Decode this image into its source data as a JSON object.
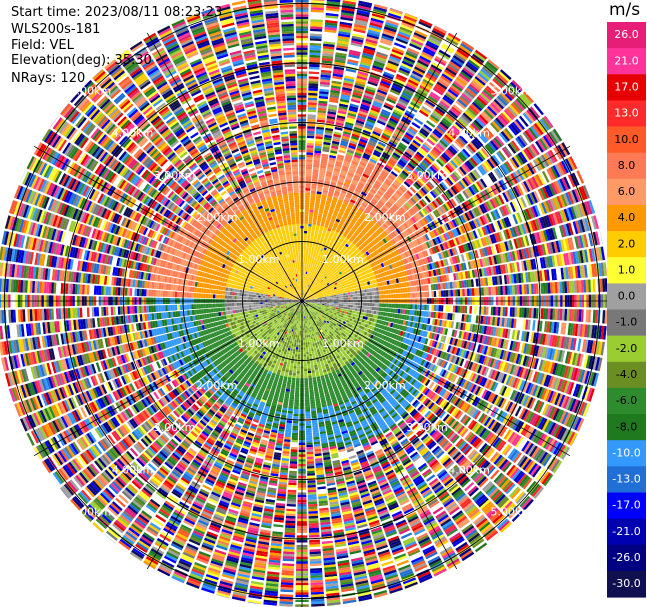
{
  "info": {
    "start_time": "Start time: 2023/08/11 08:23:23",
    "station": "WLS200s-181",
    "field": "Field: VEL",
    "elevation": "Elevation(deg): 35.30",
    "nrays": "NRays: 120"
  },
  "colorbar": {
    "unit": "m/s",
    "ticks": [
      "26.0",
      "21.0",
      "17.0",
      "13.0",
      "10.0",
      "8.0",
      "6.0",
      "4.0",
      "2.0",
      "1.0",
      "0.0",
      "-1.0",
      "-2.0",
      "-4.0",
      "-6.0",
      "-8.0",
      "-10.0",
      "-13.0",
      "-17.0",
      "-21.0",
      "-26.0",
      "-30.0"
    ],
    "colors": [
      "#e61e78",
      "#ff3399",
      "#e60000",
      "#ff2a2a",
      "#ff5a28",
      "#ff7a55",
      "#ff9966",
      "#ff9900",
      "#ffcc00",
      "#ffff33",
      "#a0a0a0",
      "#787878",
      "#9acd32",
      "#6b8e23",
      "#2e8b2e",
      "#1f7a1f",
      "#3399ff",
      "#1f6fd6",
      "#0000ff",
      "#0000b0",
      "#000080",
      "#101050"
    ]
  },
  "chart_data": {
    "type": "heatmap",
    "projection": "polar PPI",
    "field": "VEL",
    "units": "m/s",
    "elevation_deg": 35.3,
    "nrays": 120,
    "range_rings_km": [
      1.0,
      2.0,
      3.0,
      4.0,
      5.0
    ],
    "ring_labels": [
      "1.00km",
      "2.00km",
      "3.00km",
      "4.00km",
      "5.00km"
    ],
    "color_levels": [
      -30.0,
      -26.0,
      -21.0,
      -17.0,
      -13.0,
      -10.0,
      -8.0,
      -6.0,
      -4.0,
      -2.0,
      -1.0,
      0.0,
      1.0,
      2.0,
      4.0,
      6.0,
      8.0,
      10.0,
      13.0,
      17.0,
      21.0,
      26.0
    ],
    "velocity_pattern": [
      {
        "sector": "north",
        "range_km": [
          0,
          1.5
        ],
        "value": 2.0
      },
      {
        "sector": "north",
        "range_km": [
          1.5,
          2.5
        ],
        "value": 6.0
      },
      {
        "sector": "south",
        "range_km": [
          0,
          1.5
        ],
        "value": -2.0
      },
      {
        "sector": "south",
        "range_km": [
          1.5,
          2.5
        ],
        "value": -6.0
      },
      {
        "sector": "beyond",
        "range_km": [
          2.5,
          5.0
        ],
        "value": "noise"
      }
    ]
  }
}
